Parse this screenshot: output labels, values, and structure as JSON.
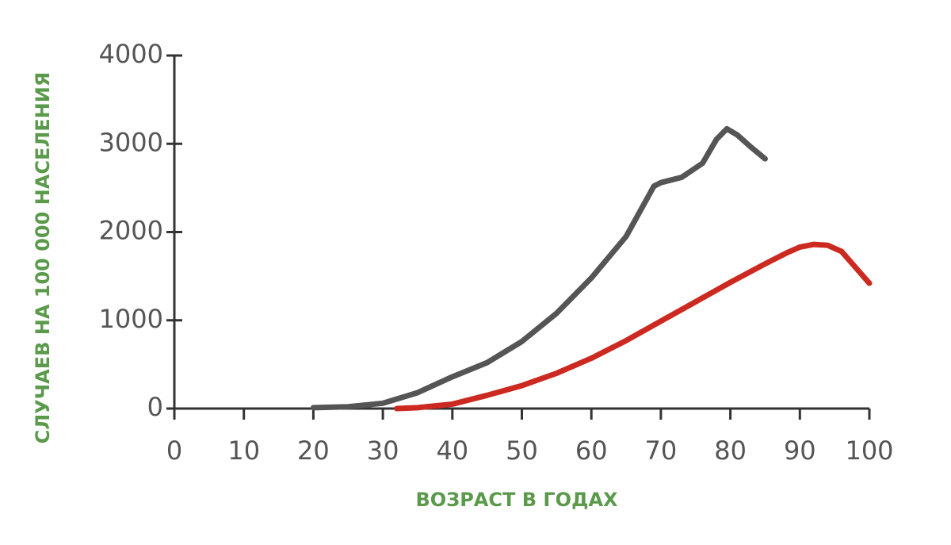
{
  "chart_data": {
    "type": "line",
    "xlabel": "ВОЗРАСТ В ГОДАХ",
    "ylabel": "СЛУЧАЕВ НА 100 000 НАСЕЛЕНИЯ",
    "xlim": [
      0,
      100
    ],
    "xticks": [
      0,
      10,
      20,
      30,
      40,
      50,
      60,
      70,
      80,
      90,
      100
    ],
    "ylim": [
      0,
      4000
    ],
    "yticks": [
      0,
      1000,
      2000,
      3000,
      4000
    ],
    "grid": false,
    "series": [
      {
        "color": "#555555",
        "x": [
          20,
          25,
          30,
          35,
          40,
          45,
          50,
          55,
          60,
          65,
          69,
          70,
          73,
          76,
          78,
          79.5,
          81,
          83,
          85
        ],
        "values": [
          10,
          20,
          60,
          180,
          360,
          520,
          760,
          1080,
          1480,
          1950,
          2520,
          2560,
          2620,
          2780,
          3050,
          3170,
          3100,
          2960,
          2830
        ]
      },
      {
        "color": "#cc2a20",
        "x": [
          32,
          35,
          40,
          45,
          50,
          55,
          60,
          65,
          70,
          75,
          80,
          85,
          88,
          90,
          92,
          94,
          96,
          98,
          100
        ],
        "values": [
          0,
          10,
          50,
          150,
          260,
          400,
          570,
          770,
          990,
          1210,
          1430,
          1640,
          1760,
          1830,
          1860,
          1850,
          1780,
          1600,
          1420
        ]
      }
    ]
  }
}
